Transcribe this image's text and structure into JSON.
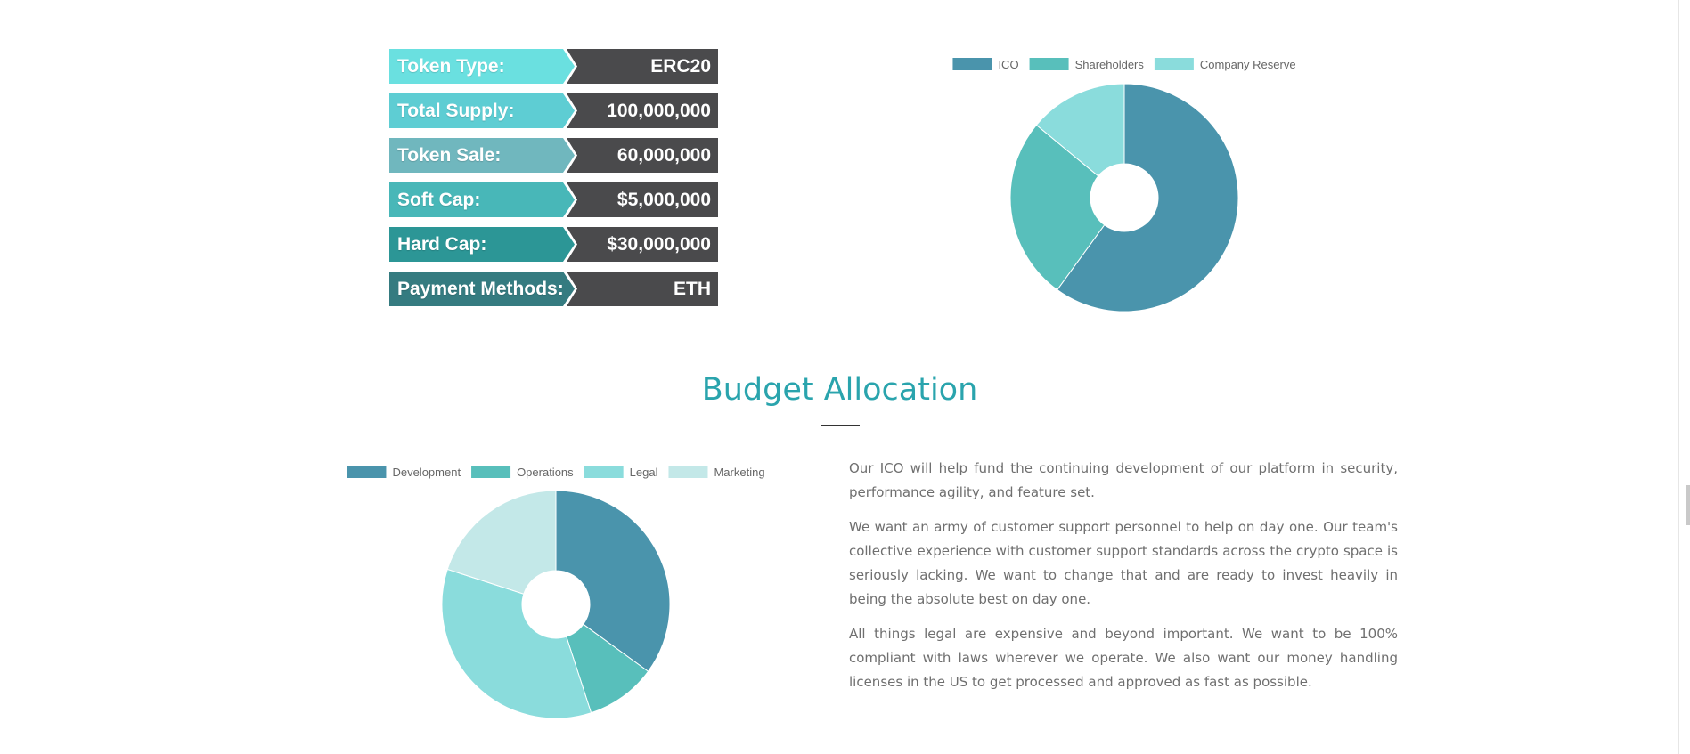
{
  "token_info": {
    "rows": [
      {
        "label": "Token Type:",
        "value": "ERC20",
        "color": "#6ae0e0"
      },
      {
        "label": "Total Supply:",
        "value": "100,000,000",
        "color": "#5ecdd3"
      },
      {
        "label": "Token Sale:",
        "value": "60,000,000",
        "color": "#70b7be"
      },
      {
        "label": "Soft Cap:",
        "value": "$5,000,000",
        "color": "#48b7b8"
      },
      {
        "label": "Hard Cap:",
        "value": "$30,000,000",
        "color": "#2c9696"
      },
      {
        "label": "Payment Methods:",
        "value": "ETH",
        "color": "#357b80"
      }
    ]
  },
  "budget": {
    "title": "Budget Allocation",
    "paragraphs": [
      "Our ICO will help fund the continuing development of our platform in security, performance agility, and feature set.",
      "We want an army of customer support personnel to help on day one. Our team's collective experience with customer support standards across the crypto space is seriously lacking. We want to change that and are ready to invest heavily in being the absolute best on day one.",
      "All things legal are expensive and beyond important. We want to be 100% compliant with laws wherever we operate. We also want our money handling licenses in the US to get processed and approved as fast as possible."
    ]
  },
  "chart_data": [
    {
      "type": "pie",
      "title": "",
      "legend_position": "top",
      "categories": [
        "ICO",
        "Shareholders",
        "Company Reserve"
      ],
      "values": [
        60,
        26,
        14
      ],
      "colors": [
        "#4a94ac",
        "#58bfbb",
        "#8adcdc"
      ]
    },
    {
      "type": "pie",
      "title": "",
      "legend_position": "top",
      "categories": [
        "Development",
        "Operations",
        "Legal",
        "Marketing"
      ],
      "values": [
        35,
        10,
        35,
        20
      ],
      "colors": [
        "#4a94ac",
        "#58bfbb",
        "#8adcdc",
        "#c3e8e8"
      ]
    }
  ]
}
